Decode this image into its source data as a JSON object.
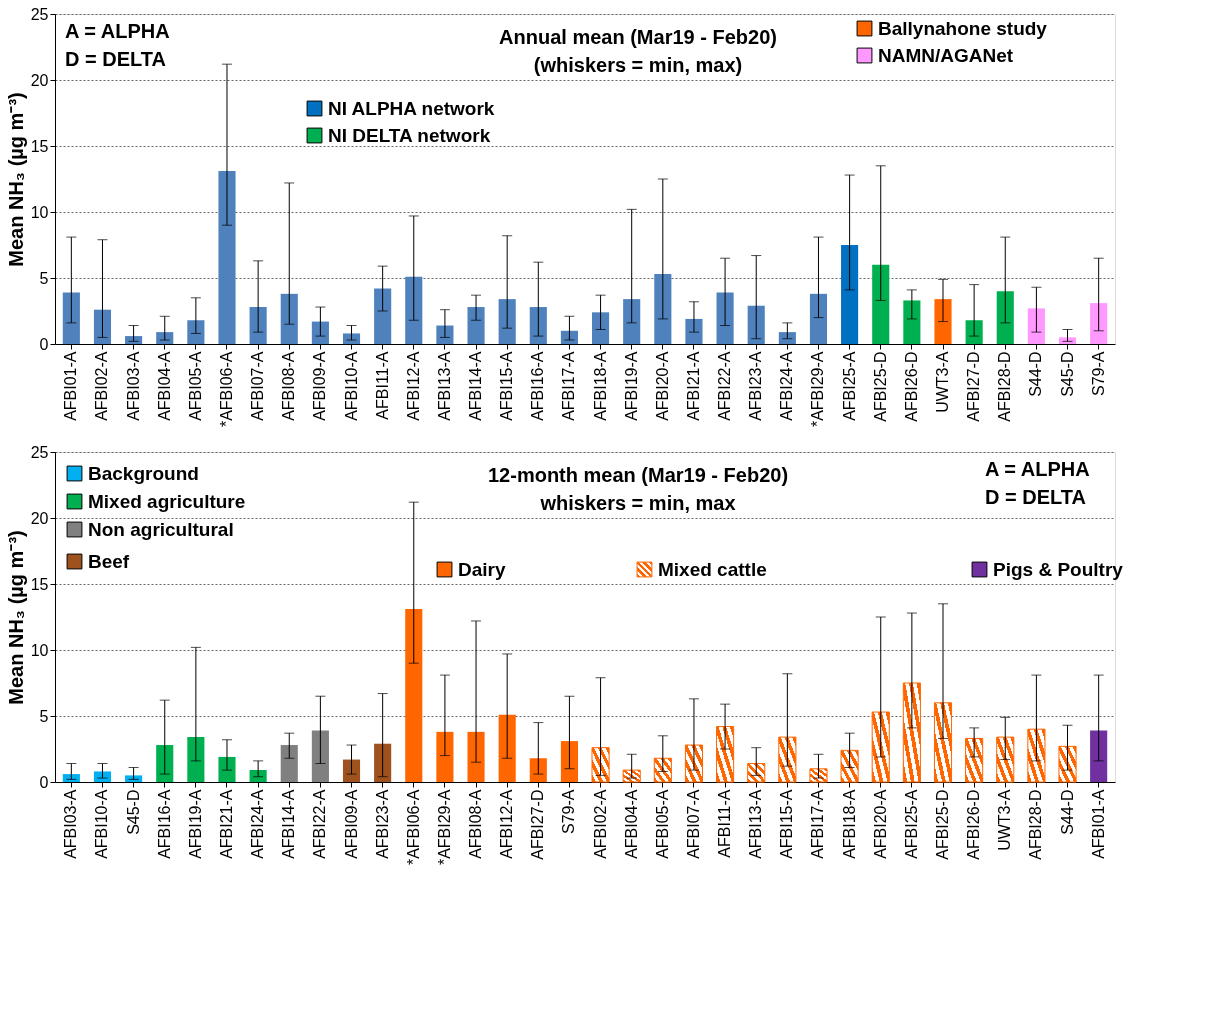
{
  "chart_data": [
    {
      "type": "bar",
      "title": "Annual mean (Mar19 - Feb20)",
      "subtitle": "(whiskers = min, max)",
      "ylabel": "Mean NH₃ (µg m⁻³)",
      "annotations": [
        "A = ALPHA",
        "D = DELTA"
      ],
      "ylim": [
        0,
        25
      ],
      "yticks": [
        0,
        5,
        10,
        15,
        20,
        25
      ],
      "grid": "y",
      "legend": "top",
      "categories": [
        "AFBI01-A",
        "AFBI02-A",
        "AFBI03-A",
        "AFBI04-A",
        "AFBI05-A",
        "*AFBI06-A",
        "AFBI07-A",
        "AFBI08-A",
        "AFBI09-A",
        "AFBI10-A",
        "AFBI11-A",
        "AFBI12-A",
        "AFBI13-A",
        "AFBI14-A",
        "AFBI15-A",
        "AFBI16-A",
        "AFBI17-A",
        "AFBI18-A",
        "AFBI19-A",
        "AFBI20-A",
        "AFBI21-A",
        "AFBI22-A",
        "AFBI23-A",
        "AFBI24-A",
        "*AFBI29-A",
        "AFBI25-A",
        "AFBI25-D",
        "AFBI26-D",
        "UWT3-A",
        "AFBI27-D",
        "AFBI28-D",
        "S44-D",
        "S45-D",
        "S79-A"
      ],
      "series": [
        {
          "color": "#4f81bd",
          "values": [
            3.9,
            2.6,
            0.6,
            0.9,
            1.8,
            13.1,
            2.8,
            3.8,
            1.7,
            0.8,
            4.2,
            5.1,
            1.4,
            2.8,
            3.4,
            2.8,
            1.0,
            2.4,
            3.4,
            5.3,
            1.9,
            3.9,
            2.9,
            0.9,
            3.8,
            null,
            null,
            null,
            null,
            null,
            null,
            null,
            null,
            null
          ],
          "errors": [
            [
              1.6,
              8.1
            ],
            [
              0.5,
              7.9
            ],
            [
              0.2,
              1.4
            ],
            [
              0.3,
              2.1
            ],
            [
              0.8,
              3.5
            ],
            [
              9.0,
              21.2
            ],
            [
              0.9,
              6.3
            ],
            [
              1.5,
              12.2
            ],
            [
              0.6,
              2.8
            ],
            [
              0.3,
              1.4
            ],
            [
              2.5,
              5.9
            ],
            [
              1.8,
              9.7
            ],
            [
              0.5,
              2.6
            ],
            [
              1.8,
              3.7
            ],
            [
              1.2,
              8.2
            ],
            [
              0.6,
              6.2
            ],
            [
              0.3,
              2.1
            ],
            [
              1.1,
              3.7
            ],
            [
              1.6,
              10.2
            ],
            [
              1.9,
              12.5
            ],
            [
              0.9,
              3.2
            ],
            [
              1.4,
              6.5
            ],
            [
              0.4,
              6.7
            ],
            [
              0.4,
              1.6
            ],
            [
              2.0,
              8.1
            ],
            null,
            null,
            null,
            null,
            null,
            null,
            null,
            null,
            null
          ]
        },
        {
          "name": "NI ALPHA network",
          "color": "#0070c0",
          "values": [
            null,
            null,
            null,
            null,
            null,
            null,
            null,
            null,
            null,
            null,
            null,
            null,
            null,
            null,
            null,
            null,
            null,
            null,
            null,
            null,
            null,
            null,
            null,
            null,
            null,
            7.5,
            null,
            null,
            null,
            null,
            null,
            null,
            null,
            null
          ],
          "errors": [
            null,
            null,
            null,
            null,
            null,
            null,
            null,
            null,
            null,
            null,
            null,
            null,
            null,
            null,
            null,
            null,
            null,
            null,
            null,
            null,
            null,
            null,
            null,
            null,
            null,
            [
              4.1,
              12.8
            ],
            null,
            null,
            null,
            null,
            null,
            null,
            null,
            null
          ]
        },
        {
          "name": "NI DELTA network",
          "color": "#00b050",
          "values": [
            null,
            null,
            null,
            null,
            null,
            null,
            null,
            null,
            null,
            null,
            null,
            null,
            null,
            null,
            null,
            null,
            null,
            null,
            null,
            null,
            null,
            null,
            null,
            null,
            null,
            null,
            6.0,
            3.3,
            null,
            1.8,
            4.0,
            null,
            null,
            null
          ],
          "errors": [
            null,
            null,
            null,
            null,
            null,
            null,
            null,
            null,
            null,
            null,
            null,
            null,
            null,
            null,
            null,
            null,
            null,
            null,
            null,
            null,
            null,
            null,
            null,
            null,
            null,
            null,
            [
              3.3,
              13.5
            ],
            [
              1.9,
              4.1
            ],
            null,
            [
              0.6,
              4.5
            ],
            [
              1.6,
              8.1
            ],
            null,
            null,
            null
          ]
        },
        {
          "name": "Ballynahone study",
          "color": "#ff6600",
          "values": [
            null,
            null,
            null,
            null,
            null,
            null,
            null,
            null,
            null,
            null,
            null,
            null,
            null,
            null,
            null,
            null,
            null,
            null,
            null,
            null,
            null,
            null,
            null,
            null,
            null,
            null,
            null,
            null,
            3.4,
            null,
            null,
            null,
            null,
            null
          ],
          "errors": [
            null,
            null,
            null,
            null,
            null,
            null,
            null,
            null,
            null,
            null,
            null,
            null,
            null,
            null,
            null,
            null,
            null,
            null,
            null,
            null,
            null,
            null,
            null,
            null,
            null,
            null,
            null,
            null,
            [
              1.7,
              4.9
            ],
            null,
            null,
            null,
            null,
            null
          ]
        },
        {
          "name": "NAMN/AGANet",
          "color": "#ff99ff",
          "values": [
            null,
            null,
            null,
            null,
            null,
            null,
            null,
            null,
            null,
            null,
            null,
            null,
            null,
            null,
            null,
            null,
            null,
            null,
            null,
            null,
            null,
            null,
            null,
            null,
            null,
            null,
            null,
            null,
            null,
            null,
            null,
            2.7,
            0.5,
            3.1
          ],
          "errors": [
            null,
            null,
            null,
            null,
            null,
            null,
            null,
            null,
            null,
            null,
            null,
            null,
            null,
            null,
            null,
            null,
            null,
            null,
            null,
            null,
            null,
            null,
            null,
            null,
            null,
            null,
            null,
            null,
            null,
            null,
            null,
            [
              0.9,
              4.3
            ],
            [
              0.2,
              1.1
            ],
            [
              1.0,
              6.5
            ]
          ]
        }
      ]
    },
    {
      "type": "bar",
      "title": "12-month mean (Mar19 - Feb20)",
      "subtitle": "whiskers = min, max",
      "ylabel": "Mean NH₃ (µg m⁻³)",
      "annotations": [
        "A = ALPHA",
        "D = DELTA"
      ],
      "ylim": [
        0,
        25
      ],
      "yticks": [
        0,
        5,
        10,
        15,
        20,
        25
      ],
      "grid": "y",
      "legend": "top",
      "categories": [
        "AFBI03-A",
        "AFBI10-A",
        "S45-D",
        "AFBI16-A",
        "AFBI19-A",
        "AFBI21-A",
        "AFBI24-A",
        "AFBI14-A",
        "AFBI22-A",
        "AFBI09-A",
        "AFBI23-A",
        "*AFBI06-A",
        "*AFBI29-A",
        "AFBI08-A",
        "AFBI12-A",
        "AFBI27-D",
        "S79-A",
        "AFBI02-A",
        "AFBI04-A",
        "AFBI05-A",
        "AFBI07-A",
        "AFBI11-A",
        "AFBI13-A",
        "AFBI15-A",
        "AFBI17-A",
        "AFBI18-A",
        "AFBI20-A",
        "AFBI25-A",
        "AFBI25-D",
        "AFBI26-D",
        "UWT3-A",
        "AFBI28-D",
        "S44-D",
        "AFBI01-A"
      ],
      "series": [
        {
          "name": "Background",
          "color": "#00b0f0",
          "values": [
            0.6,
            0.8,
            0.5,
            null,
            null,
            null,
            null,
            null,
            null,
            null,
            null,
            null,
            null,
            null,
            null,
            null,
            null,
            null,
            null,
            null,
            null,
            null,
            null,
            null,
            null,
            null,
            null,
            null,
            null,
            null,
            null,
            null,
            null,
            null
          ],
          "errors": [
            [
              0.2,
              1.4
            ],
            [
              0.3,
              1.4
            ],
            [
              0.2,
              1.1
            ],
            null,
            null,
            null,
            null,
            null,
            null,
            null,
            null,
            null,
            null,
            null,
            null,
            null,
            null,
            null,
            null,
            null,
            null,
            null,
            null,
            null,
            null,
            null,
            null,
            null,
            null,
            null,
            null,
            null,
            null,
            null
          ]
        },
        {
          "name": "Mixed agriculture",
          "color": "#00b050",
          "values": [
            null,
            null,
            null,
            2.8,
            3.4,
            1.9,
            0.9,
            null,
            null,
            null,
            null,
            null,
            null,
            null,
            null,
            null,
            null,
            null,
            null,
            null,
            null,
            null,
            null,
            null,
            null,
            null,
            null,
            null,
            null,
            null,
            null,
            null,
            null,
            null
          ],
          "errors": [
            null,
            null,
            null,
            [
              0.6,
              6.2
            ],
            [
              1.6,
              10.2
            ],
            [
              0.9,
              3.2
            ],
            [
              0.4,
              1.6
            ],
            null,
            null,
            null,
            null,
            null,
            null,
            null,
            null,
            null,
            null,
            null,
            null,
            null,
            null,
            null,
            null,
            null,
            null,
            null,
            null,
            null,
            null,
            null,
            null,
            null,
            null,
            null
          ]
        },
        {
          "name": "Non agricultural",
          "color": "#808080",
          "values": [
            null,
            null,
            null,
            null,
            null,
            null,
            null,
            2.8,
            3.9,
            null,
            null,
            null,
            null,
            null,
            null,
            null,
            null,
            null,
            null,
            null,
            null,
            null,
            null,
            null,
            null,
            null,
            null,
            null,
            null,
            null,
            null,
            null,
            null,
            null
          ],
          "errors": [
            null,
            null,
            null,
            null,
            null,
            null,
            null,
            [
              1.8,
              3.7
            ],
            [
              1.4,
              6.5
            ],
            null,
            null,
            null,
            null,
            null,
            null,
            null,
            null,
            null,
            null,
            null,
            null,
            null,
            null,
            null,
            null,
            null,
            null,
            null,
            null,
            null,
            null,
            null,
            null,
            null
          ]
        },
        {
          "name": "Beef",
          "color": "#a0521e",
          "values": [
            null,
            null,
            null,
            null,
            null,
            null,
            null,
            null,
            null,
            1.7,
            2.9,
            null,
            null,
            null,
            null,
            null,
            null,
            null,
            null,
            null,
            null,
            null,
            null,
            null,
            null,
            null,
            null,
            null,
            null,
            null,
            null,
            null,
            null,
            null
          ],
          "errors": [
            null,
            null,
            null,
            null,
            null,
            null,
            null,
            null,
            null,
            [
              0.6,
              2.8
            ],
            [
              0.4,
              6.7
            ],
            null,
            null,
            null,
            null,
            null,
            null,
            null,
            null,
            null,
            null,
            null,
            null,
            null,
            null,
            null,
            null,
            null,
            null,
            null,
            null,
            null,
            null,
            null
          ]
        },
        {
          "name": "Dairy",
          "color": "#ff6600",
          "values": [
            null,
            null,
            null,
            null,
            null,
            null,
            null,
            null,
            null,
            null,
            null,
            13.1,
            3.8,
            3.8,
            5.1,
            1.8,
            3.1,
            null,
            null,
            null,
            null,
            null,
            null,
            null,
            null,
            null,
            null,
            null,
            null,
            null,
            null,
            null,
            null,
            null
          ],
          "errors": [
            null,
            null,
            null,
            null,
            null,
            null,
            null,
            null,
            null,
            null,
            null,
            [
              9.0,
              21.2
            ],
            [
              2.0,
              8.1
            ],
            [
              1.5,
              12.2
            ],
            [
              1.8,
              9.7
            ],
            [
              0.6,
              4.5
            ],
            [
              1.0,
              6.5
            ],
            null,
            null,
            null,
            null,
            null,
            null,
            null,
            null,
            null,
            null,
            null,
            null,
            null,
            null,
            null,
            null,
            null
          ]
        },
        {
          "name": "Mixed cattle",
          "color": "#ff6600",
          "values": [
            null,
            null,
            null,
            null,
            null,
            null,
            null,
            null,
            null,
            null,
            null,
            null,
            null,
            null,
            null,
            null,
            null,
            2.6,
            0.9,
            1.8,
            2.8,
            4.2,
            1.4,
            3.4,
            1.0,
            2.4,
            5.3,
            7.5,
            6.0,
            3.3,
            3.4,
            4.0,
            2.7,
            null
          ],
          "errors": [
            null,
            null,
            null,
            null,
            null,
            null,
            null,
            null,
            null,
            null,
            null,
            null,
            null,
            null,
            null,
            null,
            null,
            [
              0.5,
              7.9
            ],
            [
              0.3,
              2.1
            ],
            [
              0.8,
              3.5
            ],
            [
              0.9,
              6.3
            ],
            [
              2.5,
              5.9
            ],
            [
              0.5,
              2.6
            ],
            [
              1.2,
              8.2
            ],
            [
              0.3,
              2.1
            ],
            [
              1.1,
              3.7
            ],
            [
              1.9,
              12.5
            ],
            [
              4.1,
              12.8
            ],
            [
              3.3,
              13.5
            ],
            [
              1.9,
              4.1
            ],
            [
              1.7,
              4.9
            ],
            [
              1.6,
              8.1
            ],
            [
              0.9,
              4.3
            ],
            null
          ]
        },
        {
          "name": "Pigs & Poultry",
          "color": "#7030a0",
          "values": [
            null,
            null,
            null,
            null,
            null,
            null,
            null,
            null,
            null,
            null,
            null,
            null,
            null,
            null,
            null,
            null,
            null,
            null,
            null,
            null,
            null,
            null,
            null,
            null,
            null,
            null,
            null,
            null,
            null,
            null,
            null,
            null,
            null,
            3.9
          ],
          "errors": [
            null,
            null,
            null,
            null,
            null,
            null,
            null,
            null,
            null,
            null,
            null,
            null,
            null,
            null,
            null,
            null,
            null,
            null,
            null,
            null,
            null,
            null,
            null,
            null,
            null,
            null,
            null,
            null,
            null,
            null,
            null,
            null,
            null,
            [
              1.6,
              8.1
            ]
          ]
        }
      ]
    }
  ]
}
